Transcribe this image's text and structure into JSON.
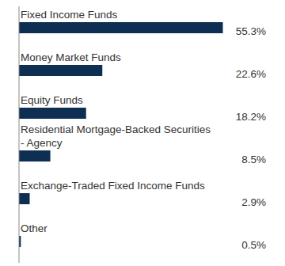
{
  "chart_data": {
    "type": "bar",
    "orientation": "horizontal",
    "categories": [
      "Fixed Income Funds",
      "Money Market Funds",
      "Equity Funds",
      "Residential Mortgage-Backed Securities - Agency",
      "Exchange-Traded Fixed Income Funds",
      "Other"
    ],
    "values": [
      55.3,
      22.6,
      18.2,
      8.5,
      2.9,
      0.5
    ],
    "value_labels": [
      "55.3%",
      "22.6%",
      "18.2%",
      "8.5%",
      "2.9%",
      "0.5%"
    ],
    "color": "#0f2f52",
    "xlim": [
      0,
      67
    ],
    "data_labels": true,
    "tick_labels": false,
    "grid": false
  }
}
